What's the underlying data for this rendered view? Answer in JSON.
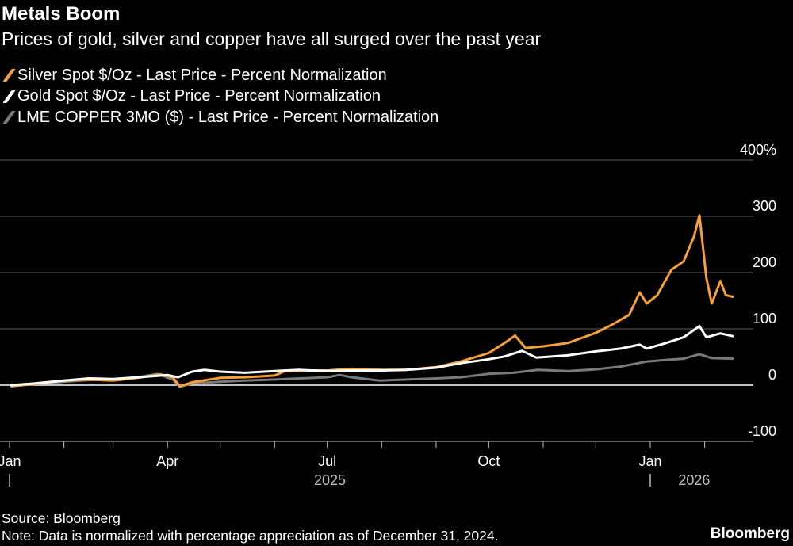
{
  "header": {
    "title": "Metals Boom",
    "subtitle": "Prices of gold, silver and copper have all surged over the past year"
  },
  "footer": {
    "source": "Source: Bloomberg",
    "note": "Note: Data is normalized with percentage appreciation as of December 31, 2024.",
    "brand": "Bloomberg"
  },
  "chart_data": {
    "type": "line",
    "title": "Metals Boom",
    "subtitle": "Prices of gold, silver and copper have all surged over the past year",
    "ylim": [
      -100,
      400
    ],
    "yticks": [
      -100,
      0,
      100,
      200,
      300,
      400
    ],
    "ytick_labels": [
      "-100",
      "0",
      "100",
      "200",
      "300",
      "400%"
    ],
    "grid": true,
    "legend_placement": "top-left",
    "xlim": [
      "2025-01-01",
      "2026-02-20"
    ],
    "month_ticks": [
      "2025-01-01",
      "2025-02-01",
      "2025-03-01",
      "2025-04-01",
      "2025-05-01",
      "2025-06-01",
      "2025-07-01",
      "2025-08-01",
      "2025-09-01",
      "2025-10-01",
      "2025-11-01",
      "2025-12-01",
      "2026-01-01",
      "2026-02-01"
    ],
    "x_labels": [
      {
        "date": "2025-01-01",
        "label": "Jan"
      },
      {
        "date": "2025-04-01",
        "label": "Apr"
      },
      {
        "date": "2025-07-01",
        "label": "Jul"
      },
      {
        "date": "2025-10-01",
        "label": "Oct"
      },
      {
        "date": "2026-01-01",
        "label": "Jan"
      }
    ],
    "year_labels": [
      {
        "year": "2025",
        "start": "2025-01-01",
        "end": "2026-01-01"
      },
      {
        "year": "2026",
        "start": "2026-01-01",
        "end": "2026-02-20"
      }
    ],
    "series": [
      {
        "name": "Silver Spot $/Oz - Last Price - Percent Normalization",
        "color": "#f7a03a",
        "x": [
          "2025-01-02",
          "2025-01-15",
          "2025-02-01",
          "2025-02-15",
          "2025-03-01",
          "2025-03-15",
          "2025-03-28",
          "2025-04-04",
          "2025-04-08",
          "2025-04-15",
          "2025-05-01",
          "2025-05-15",
          "2025-06-01",
          "2025-06-07",
          "2025-06-15",
          "2025-07-01",
          "2025-07-15",
          "2025-08-01",
          "2025-08-15",
          "2025-09-01",
          "2025-09-15",
          "2025-10-01",
          "2025-10-10",
          "2025-10-16",
          "2025-10-22",
          "2025-11-01",
          "2025-11-15",
          "2025-12-01",
          "2025-12-10",
          "2025-12-20",
          "2025-12-26",
          "2025-12-30",
          "2026-01-05",
          "2026-01-13",
          "2026-01-20",
          "2026-01-26",
          "2026-01-29",
          "2026-02-02",
          "2026-02-05",
          "2026-02-10",
          "2026-02-13",
          "2026-02-17"
        ],
        "y": [
          -2,
          2,
          8,
          10,
          8,
          13,
          19,
          14,
          -2,
          5,
          13,
          14,
          17,
          25,
          26,
          26,
          29,
          27,
          27,
          32,
          42,
          57,
          75,
          88,
          66,
          69,
          75,
          93,
          107,
          125,
          165,
          145,
          160,
          205,
          220,
          265,
          302,
          190,
          145,
          185,
          160,
          157
        ]
      },
      {
        "name": "Gold Spot $/Oz - Last Price - Percent Normalization",
        "color": "#ffffff",
        "x": [
          "2025-01-02",
          "2025-01-15",
          "2025-02-01",
          "2025-02-15",
          "2025-03-01",
          "2025-03-15",
          "2025-04-01",
          "2025-04-07",
          "2025-04-15",
          "2025-04-22",
          "2025-05-01",
          "2025-05-15",
          "2025-06-01",
          "2025-06-15",
          "2025-07-01",
          "2025-07-15",
          "2025-08-01",
          "2025-08-15",
          "2025-09-01",
          "2025-09-15",
          "2025-10-01",
          "2025-10-10",
          "2025-10-20",
          "2025-10-28",
          "2025-11-15",
          "2025-12-01",
          "2025-12-15",
          "2025-12-26",
          "2025-12-30",
          "2026-01-10",
          "2026-01-20",
          "2026-01-29",
          "2026-02-02",
          "2026-02-10",
          "2026-02-17"
        ],
        "y": [
          0,
          3,
          8,
          12,
          11,
          14,
          18,
          14,
          24,
          27,
          24,
          22,
          25,
          27,
          25,
          26,
          26,
          27,
          31,
          39,
          46,
          51,
          61,
          49,
          53,
          60,
          65,
          72,
          65,
          75,
          85,
          105,
          85,
          92,
          87
        ]
      },
      {
        "name": "LME COPPER 3MO ($) - Last Price - Percent Normalization",
        "color": "#7a7a7a",
        "x": [
          "2025-01-02",
          "2025-01-15",
          "2025-02-01",
          "2025-02-15",
          "2025-03-01",
          "2025-03-15",
          "2025-03-26",
          "2025-04-04",
          "2025-04-08",
          "2025-04-15",
          "2025-05-01",
          "2025-05-15",
          "2025-06-01",
          "2025-06-15",
          "2025-07-01",
          "2025-07-08",
          "2025-07-15",
          "2025-07-31",
          "2025-08-15",
          "2025-09-01",
          "2025-09-15",
          "2025-10-01",
          "2025-10-15",
          "2025-10-29",
          "2025-11-15",
          "2025-12-01",
          "2025-12-15",
          "2025-12-30",
          "2026-01-10",
          "2026-01-20",
          "2026-01-29",
          "2026-02-05",
          "2026-02-17"
        ],
        "y": [
          0,
          2,
          6,
          9,
          10,
          14,
          20,
          10,
          -3,
          3,
          6,
          8,
          10,
          12,
          14,
          18,
          14,
          8,
          10,
          12,
          14,
          20,
          22,
          27,
          25,
          28,
          33,
          42,
          45,
          47,
          55,
          48,
          47
        ]
      }
    ]
  }
}
